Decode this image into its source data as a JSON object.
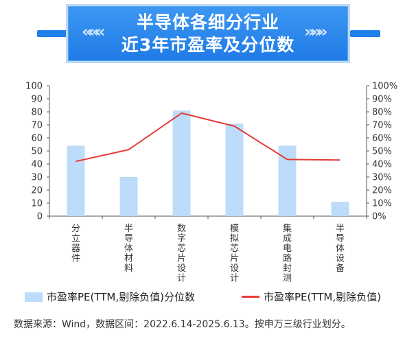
{
  "banner": {
    "title_line1": "半导体各细分行业",
    "title_line2": "近3年市盈率及分位数",
    "chevrons": "«««"
  },
  "chart_data": {
    "type": "bar",
    "categories": [
      "分立器件",
      "半导体材料",
      "数字芯片设计",
      "模拟芯片设计",
      "集成电路封测",
      "半导体设备"
    ],
    "series": [
      {
        "name": "市盈率PE(TTM,剔除负值)分位数",
        "type": "bar",
        "axis": "left",
        "values": [
          54,
          30,
          81,
          71,
          54,
          11
        ],
        "color": "#bcdcfa"
      },
      {
        "name": "市盈率PE(TTM,剔除负值)",
        "type": "line",
        "axis": "right",
        "values": [
          42,
          51,
          79,
          69,
          43.5,
          43
        ],
        "color": "#e43b35"
      }
    ],
    "y_left": {
      "min": 0,
      "max": 100,
      "ticks": [
        "0",
        "10",
        "20",
        "30",
        "40",
        "50",
        "60",
        "70",
        "80",
        "90",
        "100"
      ]
    },
    "y_right": {
      "min": 0,
      "max": 100,
      "ticks": [
        "0%",
        "10%",
        "20%",
        "30%",
        "40%",
        "50%",
        "60%",
        "70%",
        "80%",
        "90%",
        "100%"
      ]
    },
    "legend_position": "bottom"
  },
  "source_text": "数据来源：Wind，数据区间：2022.6.14-2025.6.13。按申万三级行业划分。"
}
